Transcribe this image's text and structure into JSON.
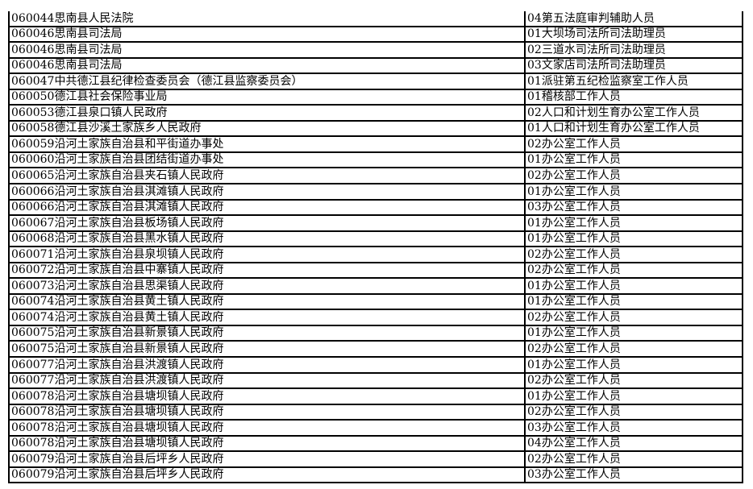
{
  "rows": [
    {
      "unit": "060044思南县人民法院",
      "position": "04第五法庭审判辅助人员"
    },
    {
      "unit": "060046思南县司法局",
      "position": "01大坝场司法所司法助理员"
    },
    {
      "unit": "060046思南县司法局",
      "position": "02三道水司法所司法助理员"
    },
    {
      "unit": "060046思南县司法局",
      "position": "03文家店司法所司法助理员"
    },
    {
      "unit": "060047中共德江县纪律检查委员会（德江县监察委员会）",
      "position": "01派驻第五纪检监察室工作人员"
    },
    {
      "unit": "060050德江县社会保险事业局",
      "position": "01稽核部工作人员"
    },
    {
      "unit": "060053德江县泉口镇人民政府",
      "position": "02人口和计划生育办公室工作人员"
    },
    {
      "unit": "060058德江县沙溪土家族乡人民政府",
      "position": "01人口和计划生育办公室工作人员"
    },
    {
      "unit": "060059沿河土家族自治县和平街道办事处",
      "position": "02办公室工作人员"
    },
    {
      "unit": "060060沿河土家族自治县团结街道办事处",
      "position": "01办公室工作人员"
    },
    {
      "unit": "060065沿河土家族自治县夹石镇人民政府",
      "position": "02办公室工作人员"
    },
    {
      "unit": "060066沿河土家族自治县淇滩镇人民政府",
      "position": "01办公室工作人员"
    },
    {
      "unit": "060066沿河土家族自治县淇滩镇人民政府",
      "position": "03办公室工作人员"
    },
    {
      "unit": "060067沿河土家族自治县板场镇人民政府",
      "position": "01办公室工作人员"
    },
    {
      "unit": "060068沿河土家族自治县黑水镇人民政府",
      "position": "01办公室工作人员"
    },
    {
      "unit": "060071沿河土家族自治县泉坝镇人民政府",
      "position": "02办公室工作人员"
    },
    {
      "unit": "060072沿河土家族自治县中寨镇人民政府",
      "position": "02办公室工作人员"
    },
    {
      "unit": "060073沿河土家族自治县思渠镇人民政府",
      "position": "01办公室工作人员"
    },
    {
      "unit": "060074沿河土家族自治县黄土镇人民政府",
      "position": "01办公室工作人员"
    },
    {
      "unit": "060074沿河土家族自治县黄土镇人民政府",
      "position": "02办公室工作人员"
    },
    {
      "unit": "060075沿河土家族自治县新景镇人民政府",
      "position": "01办公室工作人员"
    },
    {
      "unit": "060075沿河土家族自治县新景镇人民政府",
      "position": "02办公室工作人员"
    },
    {
      "unit": "060077沿河土家族自治县洪渡镇人民政府",
      "position": "01办公室工作人员"
    },
    {
      "unit": "060077沿河土家族自治县洪渡镇人民政府",
      "position": "02办公室工作人员"
    },
    {
      "unit": "060078沿河土家族自治县塘坝镇人民政府",
      "position": "01办公室工作人员"
    },
    {
      "unit": "060078沿河土家族自治县塘坝镇人民政府",
      "position": "02办公室工作人员"
    },
    {
      "unit": "060078沿河土家族自治县塘坝镇人民政府",
      "position": "03办公室工作人员"
    },
    {
      "unit": "060078沿河土家族自治县塘坝镇人民政府",
      "position": "04办公室工作人员"
    },
    {
      "unit": "060079沿河土家族自治县后坪乡人民政府",
      "position": "02办公室工作人员"
    },
    {
      "unit": "060079沿河土家族自治县后坪乡人民政府",
      "position": "03办公室工作人员"
    }
  ]
}
